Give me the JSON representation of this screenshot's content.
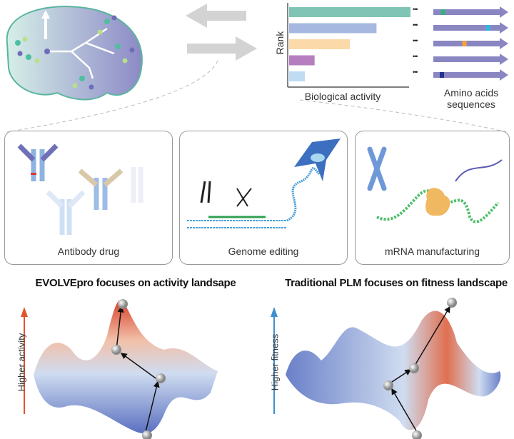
{
  "top": {
    "rank_label": "Rank",
    "activity_label": "Biological activity",
    "sequences_label": "Amino acids sequences",
    "ellipsis": "•••",
    "bars": [
      {
        "value": 1.0,
        "color": "#7fc4b4"
      },
      {
        "value": 0.72,
        "color": "#a6b8e0"
      },
      {
        "value": 0.5,
        "color": "#fbd9a8"
      },
      {
        "value": 0.21,
        "color": "#b57fbf"
      },
      {
        "value": 0.13,
        "color": "#bfdcf3"
      }
    ],
    "sequences": [
      {
        "mark": 0.12,
        "mark_color": "#3ab07a"
      },
      {
        "mark": 0.82,
        "mark_color": "#34b3e0"
      },
      {
        "mark": 0.45,
        "mark_color": "#f5a13a"
      },
      {
        "mark": null,
        "mark_color": null
      },
      {
        "mark": 0.1,
        "mark_color": "#23328a"
      }
    ],
    "sequence_color": "#8a86c2"
  },
  "panels": [
    {
      "label": "Antibody drug"
    },
    {
      "label": "Genome editing"
    },
    {
      "label": "mRNA manufacturing"
    }
  ],
  "landscapes": [
    {
      "title": "EVOLVEpro focuses on activity landsape",
      "axis_label": "Higher activity",
      "axis_color": "#e0552f"
    },
    {
      "title": "Traditional PLM focuses on fitness landscape",
      "axis_label": "Higher fitness",
      "axis_color": "#3d8fd0"
    }
  ]
}
